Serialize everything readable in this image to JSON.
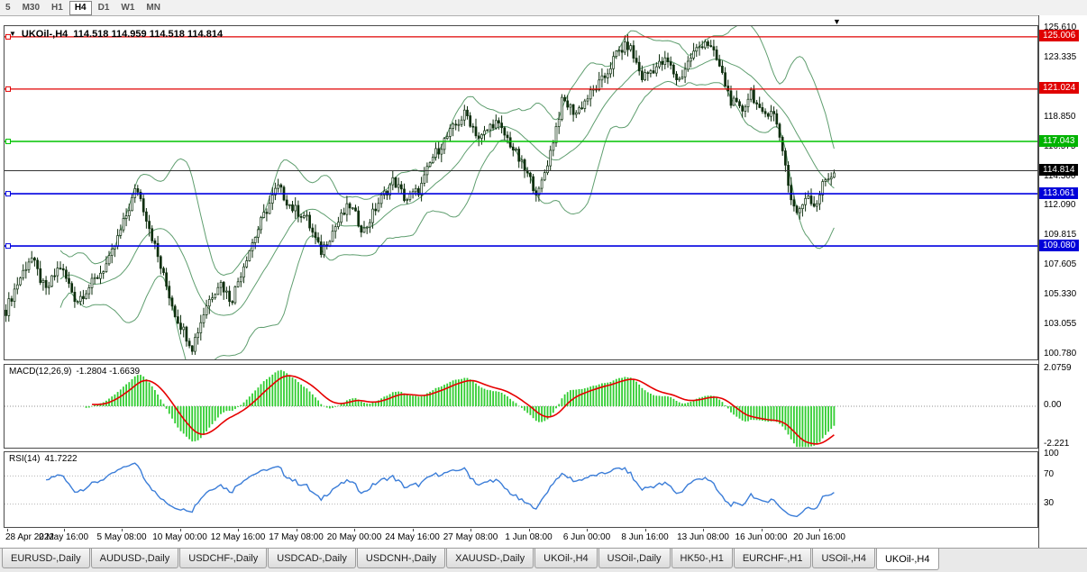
{
  "icons": {
    "dropdown": "▼",
    "shift_marker": "▼"
  },
  "toolbar": {
    "timeframes": [
      {
        "label": "5",
        "active": false
      },
      {
        "label": "M30",
        "active": false
      },
      {
        "label": "H1",
        "active": false
      },
      {
        "label": "H4",
        "active": true
      },
      {
        "label": "D1",
        "active": false
      },
      {
        "label": "W1",
        "active": false
      },
      {
        "label": "MN",
        "active": false
      }
    ]
  },
  "chart": {
    "title": "UKOil-,H4",
    "ohlc": "114.518 114.959 114.518 114.814"
  },
  "price_axis": {
    "min": 100.45,
    "max": 125.82,
    "labels": [
      "125.610",
      "123.335",
      "118.850",
      "116.575",
      "114.300",
      "112.090",
      "109.815",
      "107.605",
      "105.330",
      "103.055",
      "100.780"
    ],
    "badges": [
      {
        "label": "125.006",
        "price": 125.006,
        "color": "#e00000"
      },
      {
        "label": "121.024",
        "price": 121.024,
        "color": "#e00000"
      },
      {
        "label": "117.043",
        "price": 117.043,
        "color": "#00b300"
      },
      {
        "label": "114.814",
        "price": 114.814,
        "color": "#000000"
      },
      {
        "label": "113.061",
        "price": 113.061,
        "color": "#0000d9"
      },
      {
        "label": "109.080",
        "price": 109.08,
        "color": "#0000d9"
      }
    ]
  },
  "levels": [
    {
      "price": 125.006,
      "color": "#e00000",
      "width": 1.2,
      "handle": true
    },
    {
      "price": 121.024,
      "color": "#e00000",
      "width": 1.2,
      "handle": true
    },
    {
      "price": 117.043,
      "color": "#00c400",
      "width": 1.6,
      "handle": true
    },
    {
      "price": 114.814,
      "color": "#333333",
      "width": 0.9,
      "handle": false
    },
    {
      "price": 113.061,
      "color": "#0000e0",
      "width": 1.6,
      "handle": true
    },
    {
      "price": 109.08,
      "color": "#0000e0",
      "width": 1.6,
      "handle": true
    }
  ],
  "macd": {
    "label": "MACD(12,26,9)",
    "values": "-1.2804 -1.6639",
    "range": 2.35,
    "axis": [
      {
        "label": "2.0759",
        "value": 2.0759
      },
      {
        "label": "0.00",
        "value": 0
      },
      {
        "label": "-2.221",
        "value": -2.221
      }
    ],
    "histogram_color": "#32cd32",
    "signal_color": "#e60000"
  },
  "rsi": {
    "label": "RSI(14)",
    "value": "41.7222",
    "color": "#3b7dd8",
    "axis": [
      {
        "label": "100",
        "value": 100
      },
      {
        "label": "70",
        "value": 70
      },
      {
        "label": "30",
        "value": 30
      }
    ],
    "guides": [
      70,
      30
    ]
  },
  "time_axis": [
    "28 Apr 2022",
    "2 May 16:00",
    "5 May 08:00",
    "10 May 00:00",
    "12 May 16:00",
    "17 May 08:00",
    "20 May 00:00",
    "24 May 16:00",
    "27 May 08:00",
    "1 Jun 08:00",
    "6 Jun 00:00",
    "8 Jun 16:00",
    "13 Jun 08:00",
    "16 Jun 00:00",
    "20 Jun 16:00"
  ],
  "tabs": [
    {
      "label": "EURUSD-,Daily",
      "active": false
    },
    {
      "label": "AUDUSD-,Daily",
      "active": false
    },
    {
      "label": "USDCHF-,Daily",
      "active": false
    },
    {
      "label": "USDCAD-,Daily",
      "active": false
    },
    {
      "label": "USDCNH-,Daily",
      "active": false
    },
    {
      "label": "XAUUSD-,Daily",
      "active": false
    },
    {
      "label": "UKOil-,H4",
      "active": false
    },
    {
      "label": "USOil-,Daily",
      "active": false
    },
    {
      "label": "HK50-,H1",
      "active": false
    },
    {
      "label": "EURCHF-,H1",
      "active": false
    },
    {
      "label": "USOil-,H4",
      "active": false
    },
    {
      "label": "UKOil-,H4",
      "active": true
    }
  ],
  "chart_data": {
    "type": "candlestick",
    "symbol": "UKOil-",
    "timeframe": "H4",
    "current_ohlc": {
      "open": 114.518,
      "high": 114.959,
      "low": 114.518,
      "close": 114.814
    },
    "candle_count": 290,
    "volatility": 0.52,
    "colors": {
      "bull": "#ffffff",
      "bear": "#0d2e0d",
      "outline": "#0d2e0d"
    },
    "price_waypoints": [
      [
        0.0,
        104.2
      ],
      [
        0.012,
        106.0
      ],
      [
        0.03,
        108.3
      ],
      [
        0.048,
        105.6
      ],
      [
        0.065,
        107.6
      ],
      [
        0.085,
        104.9
      ],
      [
        0.105,
        106.3
      ],
      [
        0.125,
        108.0
      ],
      [
        0.14,
        110.5
      ],
      [
        0.158,
        113.6
      ],
      [
        0.172,
        110.8
      ],
      [
        0.188,
        107.2
      ],
      [
        0.205,
        103.8
      ],
      [
        0.225,
        101.4
      ],
      [
        0.242,
        104.6
      ],
      [
        0.258,
        106.4
      ],
      [
        0.272,
        104.9
      ],
      [
        0.29,
        108.2
      ],
      [
        0.31,
        111.2
      ],
      [
        0.328,
        113.6
      ],
      [
        0.345,
        112.0
      ],
      [
        0.362,
        111.3
      ],
      [
        0.38,
        108.6
      ],
      [
        0.398,
        110.6
      ],
      [
        0.415,
        112.2
      ],
      [
        0.432,
        110.2
      ],
      [
        0.45,
        112.4
      ],
      [
        0.468,
        114.1
      ],
      [
        0.483,
        112.6
      ],
      [
        0.5,
        113.4
      ],
      [
        0.515,
        115.8
      ],
      [
        0.535,
        117.6
      ],
      [
        0.555,
        119.2
      ],
      [
        0.572,
        117.2
      ],
      [
        0.59,
        118.6
      ],
      [
        0.608,
        117.0
      ],
      [
        0.625,
        115.0
      ],
      [
        0.643,
        113.0
      ],
      [
        0.658,
        116.4
      ],
      [
        0.672,
        120.2
      ],
      [
        0.688,
        119.2
      ],
      [
        0.705,
        120.6
      ],
      [
        0.722,
        121.8
      ],
      [
        0.738,
        123.8
      ],
      [
        0.752,
        124.4
      ],
      [
        0.768,
        121.9
      ],
      [
        0.782,
        122.6
      ],
      [
        0.798,
        123.2
      ],
      [
        0.812,
        121.6
      ],
      [
        0.828,
        123.6
      ],
      [
        0.845,
        124.8
      ],
      [
        0.86,
        123.0
      ],
      [
        0.875,
        120.2
      ],
      [
        0.888,
        119.3
      ],
      [
        0.9,
        120.9
      ],
      [
        0.912,
        118.9
      ],
      [
        0.925,
        119.6
      ],
      [
        0.937,
        116.8
      ],
      [
        0.948,
        112.6
      ],
      [
        0.957,
        111.4
      ],
      [
        0.967,
        113.2
      ],
      [
        0.977,
        112.1
      ],
      [
        0.988,
        114.0
      ],
      [
        1.0,
        114.75
      ]
    ],
    "indicators": {
      "bollinger": {
        "period": 20,
        "deviation": 2,
        "color": "#5f9e6f"
      },
      "macd": {
        "fast": 12,
        "slow": 26,
        "signal": 9,
        "main_value": -1.2804,
        "signal_value": -1.6639
      },
      "rsi": {
        "period": 14,
        "value": 41.7222
      }
    }
  }
}
